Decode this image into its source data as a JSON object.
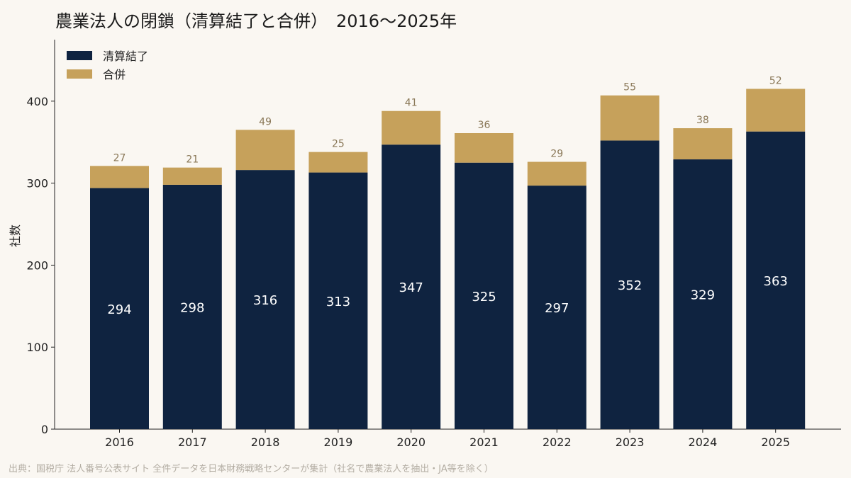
{
  "title": "農業法人の閉鎖（清算結了と合併）　2016〜2025年",
  "source": "出典：国税庁 法人番号公表サイト 全件データを日本財務戦略センターが集計（社名で農業法人を抽出・JA等を除く）",
  "chart_data": {
    "type": "bar",
    "stacked": true,
    "categories": [
      "2016",
      "2017",
      "2018",
      "2019",
      "2020",
      "2021",
      "2022",
      "2023",
      "2024",
      "2025"
    ],
    "series": [
      {
        "name": "清算結了",
        "color": "#0f2340",
        "values": [
          294,
          298,
          316,
          313,
          347,
          325,
          297,
          352,
          329,
          363
        ]
      },
      {
        "name": "合併",
        "color": "#c6a15b",
        "values": [
          27,
          21,
          49,
          25,
          41,
          36,
          29,
          55,
          38,
          52
        ]
      }
    ],
    "ylabel": "社数",
    "xlabel": "",
    "ylim": [
      0,
      475
    ],
    "yticks": [
      0,
      100,
      200,
      300,
      400
    ],
    "legend": "top-left",
    "grid": false
  }
}
